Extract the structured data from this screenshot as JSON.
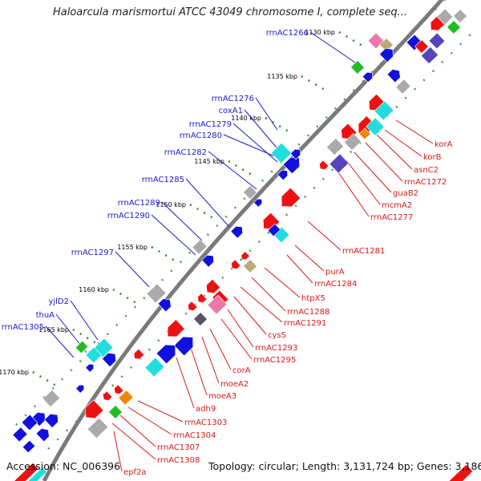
{
  "title": "Haloarcula marismortui ATCC 43049 chromosome I, complete seq...",
  "accession": "Accession: NC_006396",
  "summary": "Topology: circular; Length: 3,131,724 bp; Genes: 3,186",
  "colors": {
    "backbone": "#7a7a7a",
    "forward_label": "#1a1acc",
    "reverse_label": "#d81818",
    "tick": "#2b8a2b",
    "gene_red": "#ee1111",
    "gene_blue": "#1111dd",
    "gene_cyan": "#22dddd",
    "gene_gray": "#aaaaaa",
    "gene_dark": "#555566",
    "gene_green": "#22bb22",
    "gene_purple": "#5544bb",
    "gene_orange": "#ee8800",
    "gene_pink": "#ee77aa",
    "gene_olive": "#bbaa77"
  },
  "kbp_ticks": [
    "1130 kbp",
    "1135 kbp",
    "1140 kbp",
    "1145 kbp",
    "1150 kbp",
    "1155 kbp",
    "1160 kbp",
    "1165 kbp",
    "1170 kbp"
  ],
  "forward_labels": [
    "rrnAC1266",
    "rrnAC1276",
    "coxA1",
    "rrnAC1279",
    "rrnAC1280",
    "rrnAC1282",
    "rrnAC1285",
    "rrnAC1289",
    "rrnAC1290",
    "rrnAC1297",
    "yjlD2",
    "thuA",
    "rrnAC1305"
  ],
  "reverse_labels": [
    "korA",
    "korB",
    "asnC2",
    "rrnAC1272",
    "guaB2",
    "mcmA2",
    "rrnAC1277",
    "rrnAC1281",
    "purA",
    "rrnAC1284",
    "htpX5",
    "rrnAC1288",
    "rrnAC1291",
    "cysS",
    "rrnAC1293",
    "rrnAC1295",
    "corA",
    "moeA2",
    "moeA3",
    "adh9",
    "rrnAC1303",
    "rrnAC1304",
    "rrnAC1307",
    "rrnAC1308",
    "epf2a"
  ]
}
